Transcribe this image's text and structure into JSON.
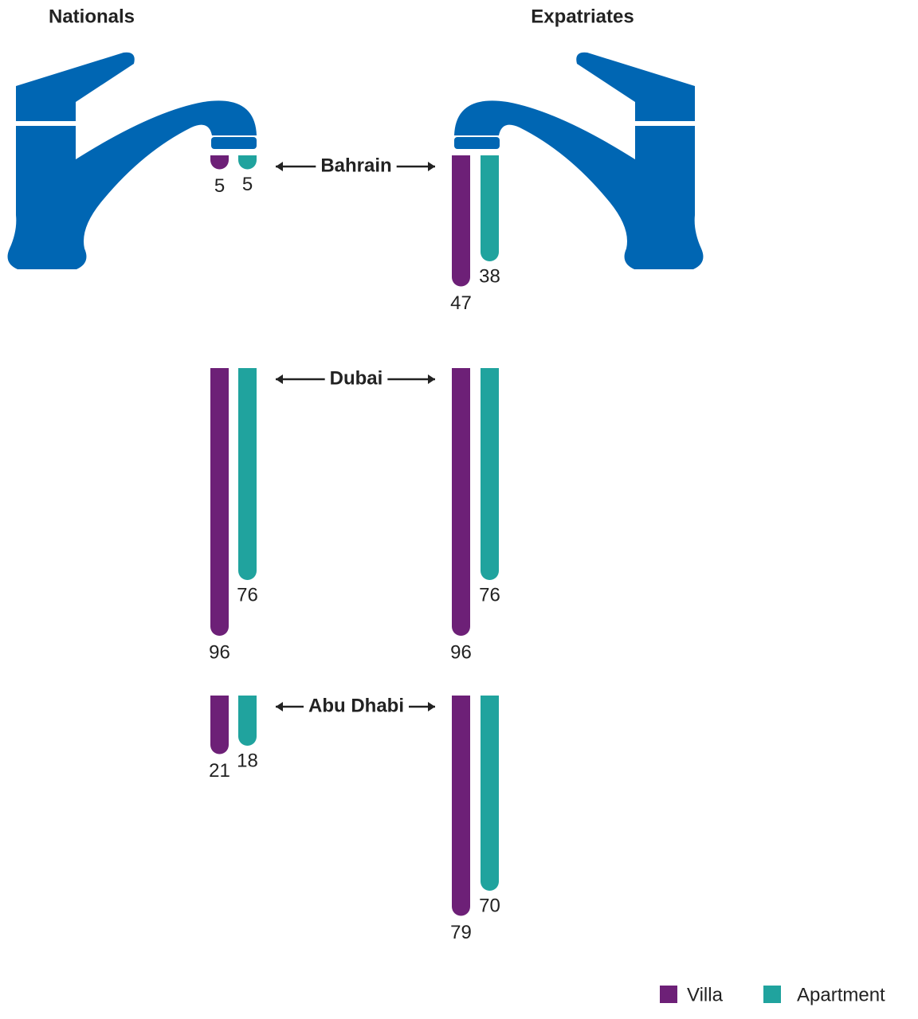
{
  "chart_data": {
    "type": "bar",
    "categories": [
      "Bahrain",
      "Dubai",
      "Abu Dhabi"
    ],
    "series": [
      {
        "name": "Villa",
        "color": "#6d2077"
      },
      {
        "name": "Apartment",
        "color": "#20a39e"
      }
    ],
    "panels": [
      {
        "title": "Nationals",
        "values": [
          [
            5,
            96,
            21
          ],
          [
            5,
            76,
            18
          ]
        ]
      },
      {
        "title": "Expatriates",
        "values": [
          [
            47,
            96,
            79
          ],
          [
            38,
            76,
            70
          ]
        ]
      }
    ]
  }
}
